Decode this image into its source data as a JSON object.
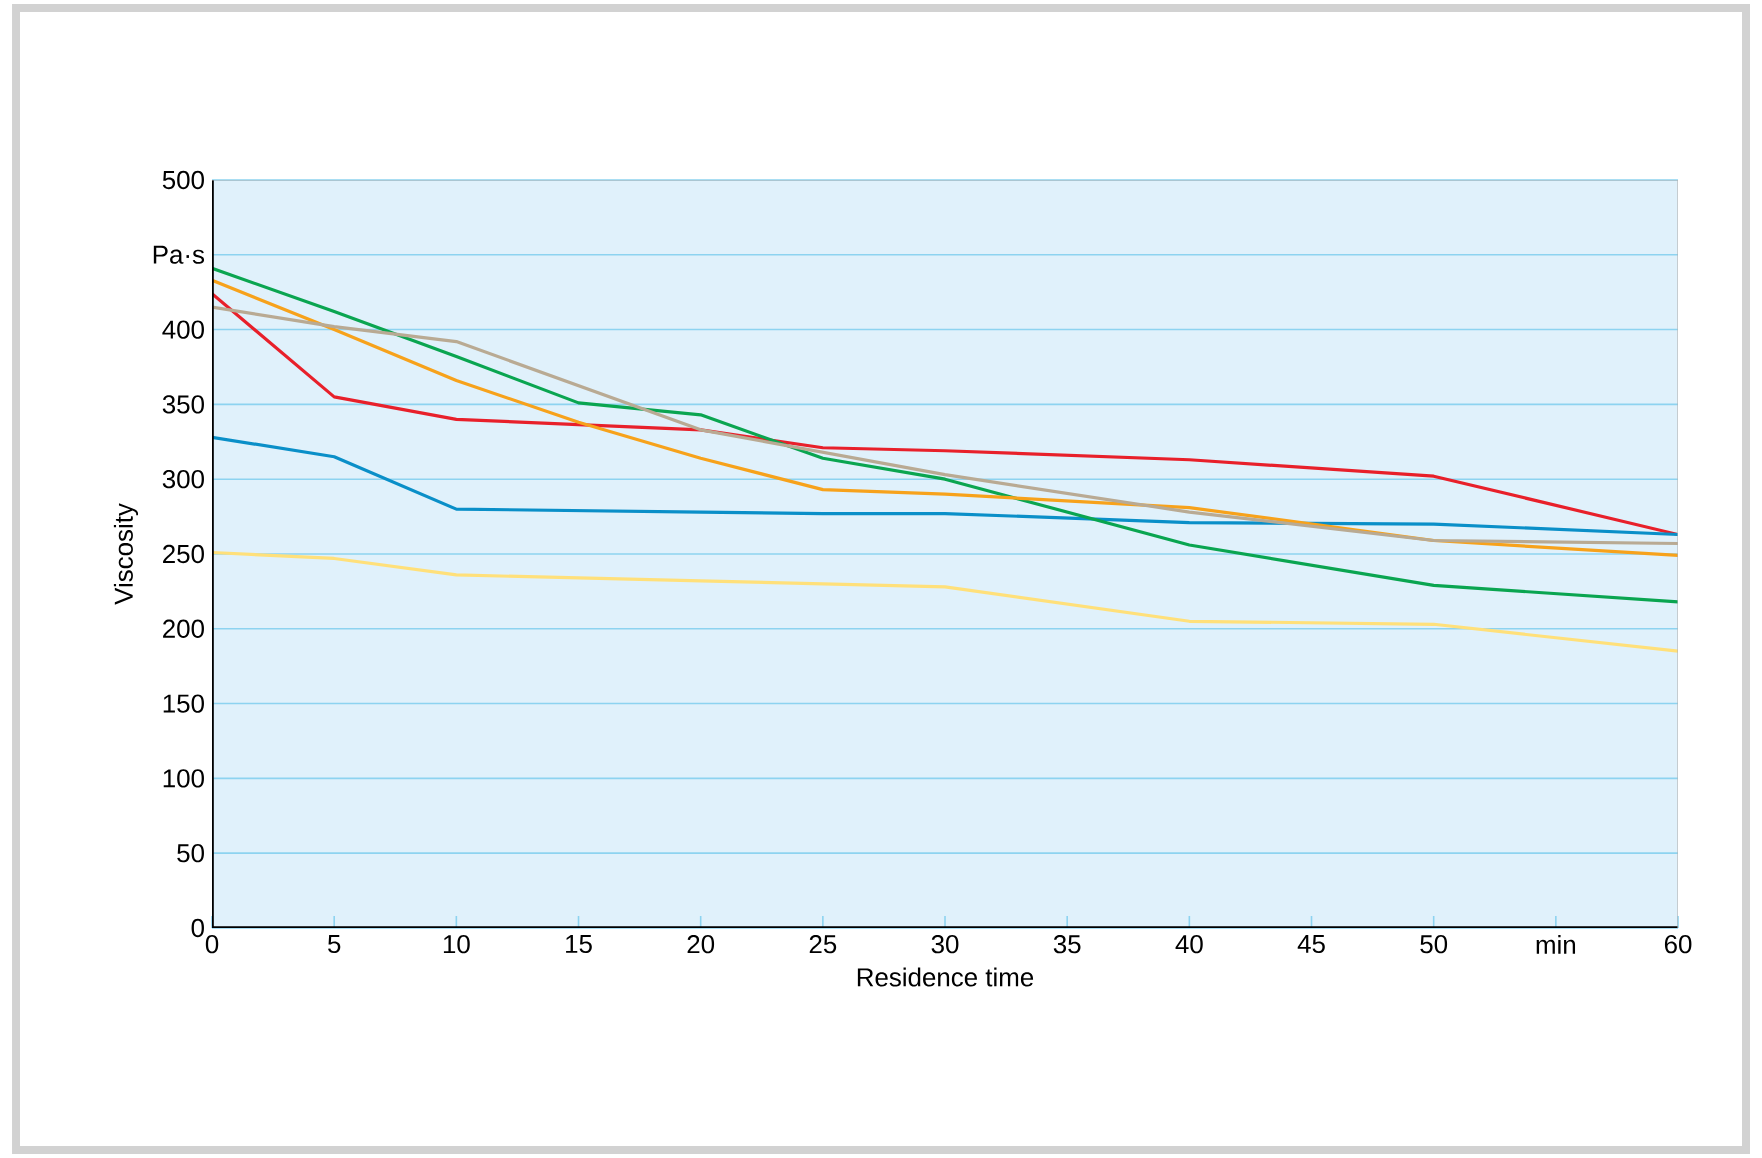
{
  "chart_data": {
    "type": "line",
    "xlabel": "Residence time",
    "ylabel": "Viscosity",
    "xlim": [
      0,
      60
    ],
    "ylim": [
      0,
      500
    ],
    "xticks": [
      0,
      5,
      10,
      15,
      20,
      25,
      30,
      35,
      40,
      45,
      50,
      {
        "value": 55,
        "label": "min"
      },
      60
    ],
    "yticks": [
      0,
      50,
      100,
      150,
      200,
      250,
      300,
      350,
      400,
      {
        "value": 450,
        "label": "Pa·s"
      },
      500
    ],
    "grid": "y",
    "marker": "none",
    "line_style": "solid",
    "series": [
      {
        "color": "#e8202a",
        "x": [
          0,
          5,
          10,
          20,
          25,
          30,
          40,
          50,
          60
        ],
        "values": [
          424,
          355,
          340,
          333,
          321,
          319,
          313,
          302,
          263
        ]
      },
      {
        "color": "#0a8fc8",
        "x": [
          0,
          5,
          10,
          20,
          25,
          30,
          40,
          50,
          60
        ],
        "values": [
          328,
          315,
          280,
          278,
          277,
          277,
          271,
          270,
          263
        ]
      },
      {
        "color": "#ffe07a",
        "x": [
          0,
          5,
          10,
          20,
          25,
          30,
          40,
          50,
          60
        ],
        "values": [
          251,
          247,
          236,
          232,
          230,
          228,
          205,
          203,
          185
        ]
      },
      {
        "color": "#0aa550",
        "x": [
          0,
          5,
          10,
          15,
          20,
          25,
          30,
          40,
          50,
          60
        ],
        "values": [
          441,
          412,
          382,
          351,
          343,
          314,
          300,
          256,
          229,
          218
        ]
      },
      {
        "color": "#f7a21b",
        "x": [
          0,
          5,
          10,
          15,
          20,
          25,
          30,
          40,
          50,
          60
        ],
        "values": [
          433,
          400,
          366,
          338,
          314,
          293,
          290,
          281,
          259,
          249
        ]
      },
      {
        "color": "#b9aa93",
        "x": [
          0,
          5,
          10,
          20,
          30,
          40,
          50,
          60
        ],
        "values": [
          415,
          402,
          392,
          333,
          303,
          278,
          259,
          257
        ]
      }
    ]
  }
}
